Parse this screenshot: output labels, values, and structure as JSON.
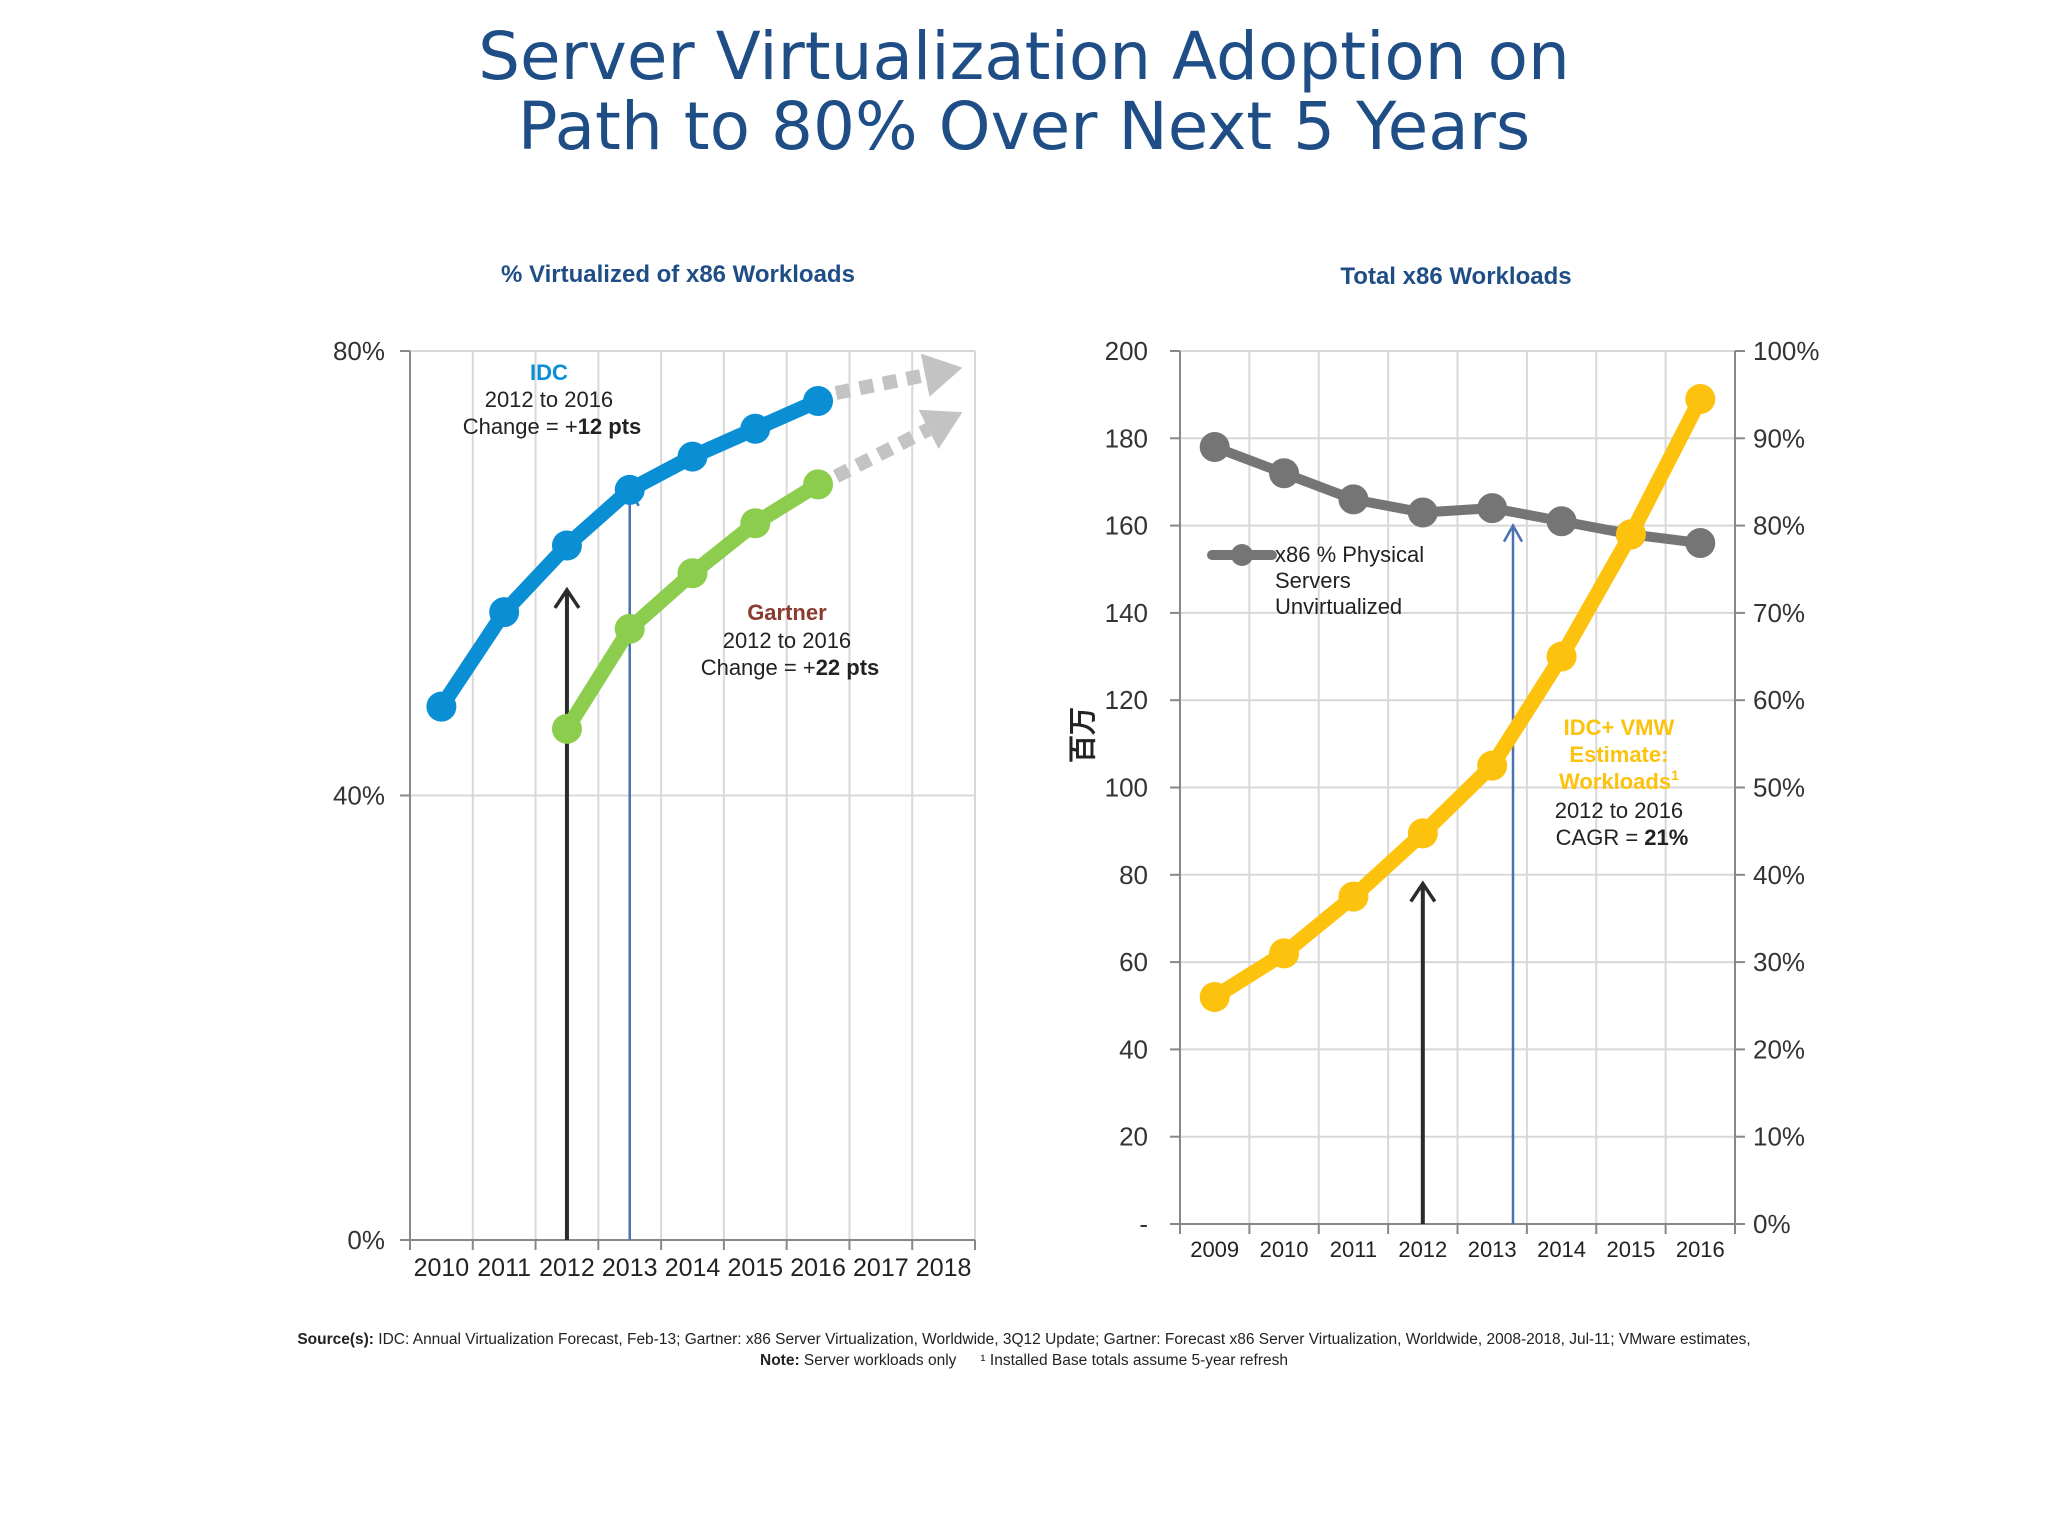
{
  "title_line1": "Server Virtualization Adoption on",
  "title_line2": "Path to 80% Over Next 5 Years",
  "colors": {
    "title": "#1f4e86",
    "idc": "#0a8fd5",
    "gartner": "#8ccd4e",
    "gartner_label": "#8b3a2e",
    "workloads": "#fcc20d",
    "physical": "#757575",
    "arrow_blue": "#4a72b0",
    "arrow_black": "#2b2b2b",
    "forecast_arrow": "#c3c3c3"
  },
  "chart_data": [
    {
      "type": "line",
      "title": "% Virtualized of x86 Workloads",
      "categories": [
        "2010",
        "2011",
        "2012",
        "2013",
        "2014",
        "2015",
        "2016",
        "2017",
        "2018"
      ],
      "y_ticks": [
        "0%",
        "40%",
        "80%"
      ],
      "ylim": [
        0,
        80
      ],
      "grid": true,
      "series": [
        {
          "name": "IDC",
          "x": [
            2010,
            2011,
            2012,
            2013,
            2014,
            2015,
            2016
          ],
          "values": [
            48,
            56.5,
            62.5,
            67.5,
            70.5,
            73,
            75.5
          ]
        },
        {
          "name": "Gartner",
          "x": [
            2012,
            2013,
            2014,
            2015,
            2016
          ],
          "values": [
            46,
            55,
            60,
            64.5,
            68
          ]
        }
      ],
      "annotations": {
        "idc": {
          "name": "IDC",
          "range": "2012 to 2016",
          "change_prefix": "Change = +",
          "change_value": "12 pts"
        },
        "gartner": {
          "name": "Gartner",
          "range": "2012 to 2016",
          "change_prefix": "Change = +",
          "change_value": "22 pts"
        }
      },
      "markers": [
        {
          "kind": "black-arrow",
          "x": 2012,
          "to": 58.5
        },
        {
          "kind": "blue-arrow",
          "x": 2013,
          "to": 67.5
        }
      ],
      "forecast_arrows": [
        {
          "from": [
            2016,
            75.5
          ],
          "to": [
            2018.3,
            78.5
          ]
        },
        {
          "from": [
            2016,
            68
          ],
          "to": [
            2018.3,
            74.5
          ]
        }
      ]
    },
    {
      "type": "line",
      "title": "Total x86 Workloads",
      "categories": [
        "2009",
        "2010",
        "2011",
        "2012",
        "2013",
        "2014",
        "2015",
        "2016"
      ],
      "y_left_ticks": [
        "-",
        "20",
        "40",
        "60",
        "80",
        "100",
        "120",
        "140",
        "160",
        "180",
        "200"
      ],
      "y_right_ticks": [
        "0%",
        "10%",
        "20%",
        "30%",
        "40%",
        "50%",
        "60%",
        "70%",
        "80%",
        "90%",
        "100%"
      ],
      "ylim": [
        0,
        200
      ],
      "y2lim": [
        0,
        100
      ],
      "ylabel": "百万",
      "grid": true,
      "series": [
        {
          "name": "x86 % Physical Servers Unvirtualized",
          "axis": "right",
          "values": [
            89,
            86,
            83,
            81.5,
            82,
            80.5,
            79,
            78
          ]
        },
        {
          "name": "IDC+ VMW Estimate: Workloads",
          "axis": "left",
          "values": [
            52,
            62,
            75,
            89.5,
            105,
            130,
            158,
            189
          ]
        }
      ],
      "legend_label": {
        "line1": "x86 % Physical",
        "line2": "Servers",
        "line3": "Unvirtualized"
      },
      "annotations": {
        "workloads": {
          "line1": "IDC+ VMW",
          "line2": "Estimate:",
          "line3": "Workloads",
          "sup": "1",
          "range": "2012 to 2016",
          "cagr_prefix": "CAGR = ",
          "cagr_value": "21%"
        }
      },
      "markers": [
        {
          "kind": "black-arrow",
          "x": 2012,
          "to": 78
        },
        {
          "kind": "blue-arrow",
          "x": 2013.3,
          "to": 160
        }
      ]
    }
  ],
  "footer": {
    "source_label": "Source(s):",
    "source_text": " IDC: Annual Virtualization Forecast, Feb-13; Gartner: x86 Server Virtualization, Worldwide, 3Q12 Update; Gartner: Forecast x86 Server Virtualization, Worldwide, 2008-2018, Jul-11; VMware estimates,",
    "note_label": "Note:",
    "note_text": " Server workloads only",
    "footnote": "¹ Installed Base totals assume 5-year refresh"
  }
}
